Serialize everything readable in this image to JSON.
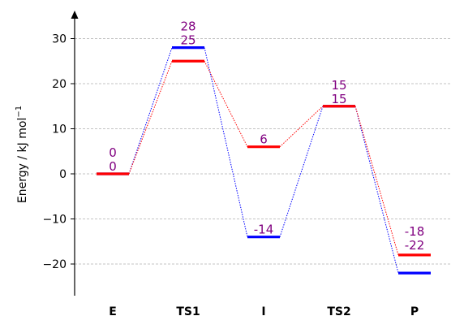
{
  "chart_data": {
    "type": "line",
    "title": "",
    "xlabel": "",
    "ylabel": "Energy / kJ mol",
    "ylabel_superscript": "−1",
    "categories": [
      "E",
      "TS1",
      "I",
      "TS2",
      "P"
    ],
    "ylim": [
      -27,
      36
    ],
    "yticks": [
      -20,
      -10,
      0,
      10,
      20,
      30
    ],
    "ytick_labels": [
      "−20",
      "−10",
      "0",
      "10",
      "20",
      "30"
    ],
    "grid": true,
    "series": [
      {
        "color": "#0000ff",
        "values": [
          0,
          28,
          -14,
          15,
          -22
        ]
      },
      {
        "color": "#ff0000",
        "values": [
          0,
          25,
          6,
          15,
          -18
        ]
      }
    ],
    "annotations": [
      {
        "category": "E",
        "lines": [
          "0",
          "0"
        ]
      },
      {
        "category": "TS1",
        "lines": [
          "28",
          "25"
        ]
      },
      {
        "category": "I",
        "lines": [
          "6"
        ]
      },
      {
        "category": "TS2",
        "lines": [
          "15",
          "15"
        ]
      },
      {
        "category": "I",
        "lines": [
          "-14"
        ],
        "below_series": 0
      },
      {
        "category": "P",
        "lines": [
          "-18",
          "-22"
        ]
      }
    ]
  }
}
